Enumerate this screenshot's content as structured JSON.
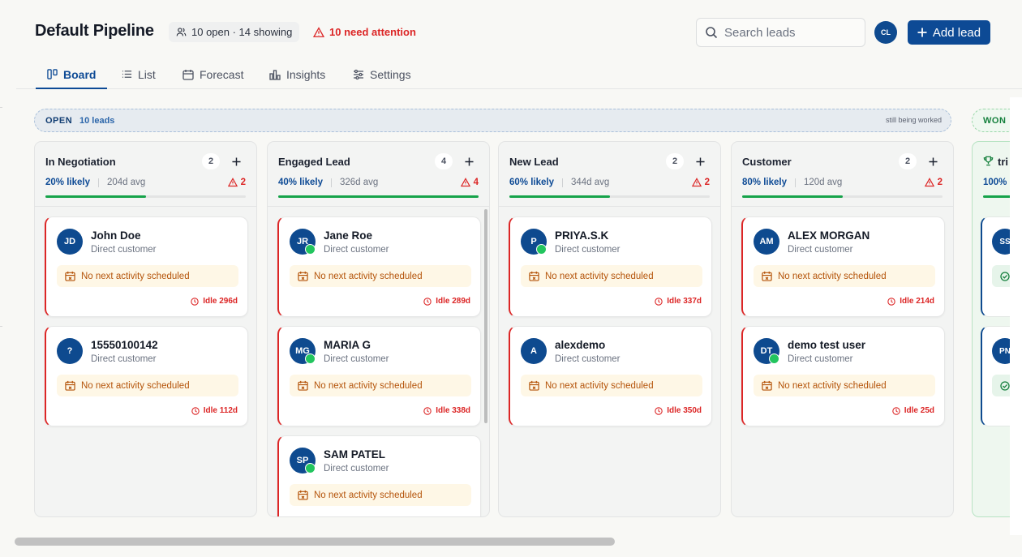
{
  "header": {
    "title": "Default Pipeline",
    "count_chip": "10 open · 14 showing",
    "attention_chip": "10 need attention",
    "search_placeholder": "Search leads",
    "user_initials": "CL",
    "add_lead_label": "Add lead"
  },
  "tabs": [
    {
      "label": "Board",
      "icon": "board-icon",
      "active": true
    },
    {
      "label": "List",
      "icon": "list-icon",
      "active": false
    },
    {
      "label": "Forecast",
      "icon": "calendar-icon",
      "active": false
    },
    {
      "label": "Insights",
      "icon": "bar-chart-icon",
      "active": false
    },
    {
      "label": "Settings",
      "icon": "sliders-icon",
      "active": false
    }
  ],
  "banners": {
    "open": {
      "label": "OPEN",
      "count": "10 leads",
      "note": "still being worked"
    },
    "won": {
      "label": "WON"
    }
  },
  "columns": [
    {
      "title": "In Negotiation",
      "count": "2",
      "likely": "20% likely",
      "avg": "204d avg",
      "attention": "2",
      "progress": 0.5,
      "cards": [
        {
          "initials": "JD",
          "name": "John Doe",
          "subtitle": "Direct customer",
          "activity": "No next activity scheduled",
          "idle": "Idle 296d",
          "whatsapp": false
        },
        {
          "initials": "?",
          "name": "15550100142",
          "subtitle": "Direct customer",
          "activity": "No next activity scheduled",
          "idle": "Idle 112d",
          "whatsapp": false
        }
      ]
    },
    {
      "title": "Engaged Lead",
      "count": "4",
      "likely": "40% likely",
      "avg": "326d avg",
      "attention": "4",
      "progress": 1.0,
      "cards": [
        {
          "initials": "JR",
          "name": "Jane Roe",
          "subtitle": "Direct customer",
          "activity": "No next activity scheduled",
          "idle": "Idle 289d",
          "whatsapp": true
        },
        {
          "initials": "MG",
          "name": "MARIA G",
          "subtitle": "Direct customer",
          "activity": "No next activity scheduled",
          "idle": "Idle 338d",
          "whatsapp": true
        },
        {
          "initials": "SP",
          "name": "SAM PATEL",
          "subtitle": "Direct customer",
          "activity": "No next activity scheduled",
          "idle": "",
          "whatsapp": true
        }
      ]
    },
    {
      "title": "New Lead",
      "count": "2",
      "likely": "60% likely",
      "avg": "344d avg",
      "attention": "2",
      "progress": 0.5,
      "cards": [
        {
          "initials": "P",
          "name": "PRIYA.S.K",
          "subtitle": "Direct customer",
          "activity": "No next activity scheduled",
          "idle": "Idle 337d",
          "whatsapp": true
        },
        {
          "initials": "A",
          "name": "alexdemo",
          "subtitle": "Direct customer",
          "activity": "No next activity scheduled",
          "idle": "Idle 350d",
          "whatsapp": false
        }
      ]
    },
    {
      "title": "Customer",
      "count": "2",
      "likely": "80% likely",
      "avg": "120d avg",
      "attention": "2",
      "progress": 0.5,
      "cards": [
        {
          "initials": "AM",
          "name": "ALEX MORGAN",
          "subtitle": "Direct customer",
          "activity": "No next activity scheduled",
          "idle": "Idle 214d",
          "whatsapp": false
        },
        {
          "initials": "DT",
          "name": "demo test user",
          "subtitle": "Direct customer",
          "activity": "No next activity scheduled",
          "idle": "Idle 25d",
          "whatsapp": true
        }
      ]
    }
  ],
  "won_column": {
    "title": "tri",
    "likely": "100%",
    "cards": [
      {
        "initials": "SS"
      },
      {
        "initials": "PN"
      }
    ]
  },
  "colors": {
    "brand": "#0d4a95",
    "danger": "#dc2626",
    "success": "#16a34a",
    "warning_bg": "#fef7e6"
  }
}
